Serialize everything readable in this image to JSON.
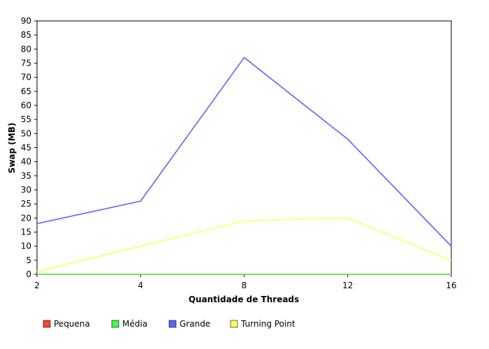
{
  "chart_data": {
    "type": "line",
    "title": "",
    "xlabel": "Quantidade de Threads",
    "ylabel": "Swap (MB)",
    "categories": [
      "2",
      "4",
      "8",
      "12",
      "16"
    ],
    "ylim": [
      0,
      90
    ],
    "yticks": [
      0,
      5,
      10,
      15,
      20,
      25,
      30,
      35,
      40,
      45,
      50,
      55,
      60,
      65,
      70,
      75,
      80,
      85,
      90
    ],
    "grid": false,
    "legend_position": "bottom",
    "series": [
      {
        "name": "Pequena",
        "color": "#ff4040",
        "values": [
          0,
          0,
          0,
          0,
          0
        ]
      },
      {
        "name": "Média",
        "color": "#40ff40",
        "values": [
          0,
          0,
          0,
          0,
          0
        ]
      },
      {
        "name": "Grande",
        "color": "#6060ff",
        "values": [
          18,
          26,
          77,
          48,
          10
        ]
      },
      {
        "name": "Turning Point",
        "color": "#ffff60",
        "values": [
          1,
          10,
          19,
          20,
          5
        ]
      }
    ]
  }
}
